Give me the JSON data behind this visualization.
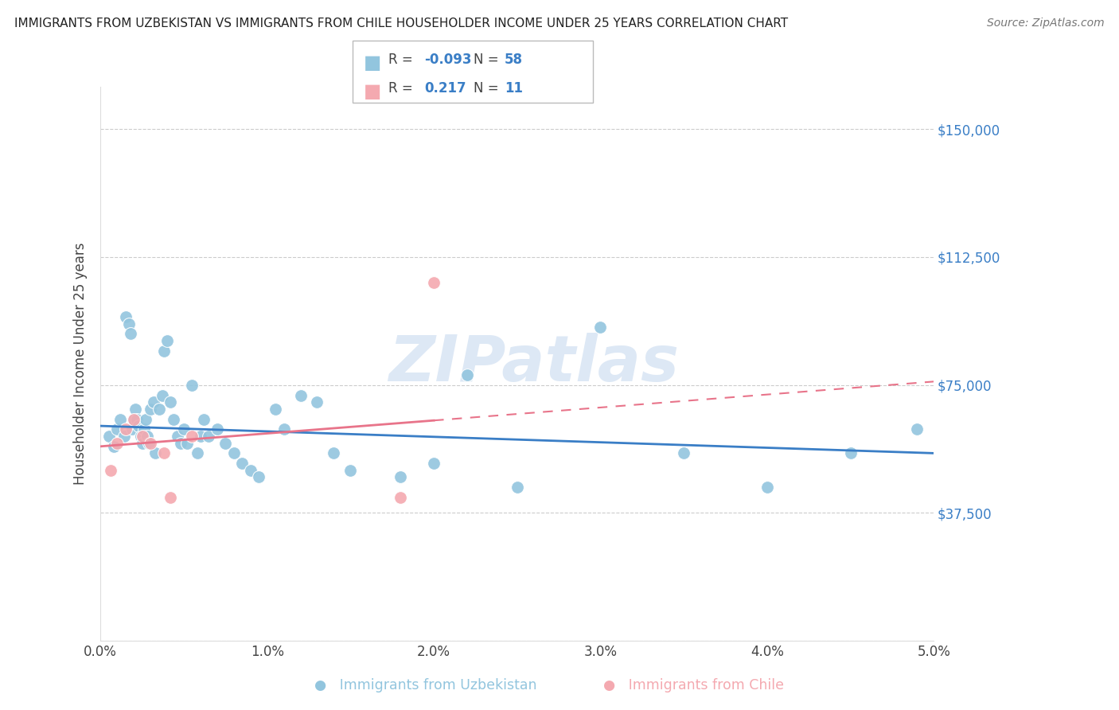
{
  "title": "IMMIGRANTS FROM UZBEKISTAN VS IMMIGRANTS FROM CHILE HOUSEHOLDER INCOME UNDER 25 YEARS CORRELATION CHART",
  "source": "Source: ZipAtlas.com",
  "ylabel": "Householder Income Under 25 years",
  "xlim": [
    0.0,
    5.0
  ],
  "ylim": [
    0,
    162500
  ],
  "yticks": [
    0,
    37500,
    75000,
    112500,
    150000
  ],
  "ytick_labels_right": [
    "",
    "$37,500",
    "$75,000",
    "$112,500",
    "$150,000"
  ],
  "xtick_values": [
    0,
    1,
    2,
    3,
    4,
    5
  ],
  "xtick_labels": [
    "0.0%",
    "1.0%",
    "2.0%",
    "3.0%",
    "4.0%",
    "5.0%"
  ],
  "blue_color": "#92c5de",
  "pink_color": "#f4a9b0",
  "blue_line_color": "#3a7ec6",
  "pink_line_color": "#e8748a",
  "watermark_text": "ZIPatlas",
  "watermark_color": "#dde8f5",
  "legend_blue_R": "-0.093",
  "legend_blue_N": "58",
  "legend_pink_R": "0.217",
  "legend_pink_N": "11",
  "blue_scatter_x": [
    0.05,
    0.08,
    0.1,
    0.12,
    0.14,
    0.15,
    0.17,
    0.18,
    0.19,
    0.2,
    0.21,
    0.22,
    0.23,
    0.24,
    0.25,
    0.26,
    0.27,
    0.28,
    0.29,
    0.3,
    0.32,
    0.33,
    0.35,
    0.37,
    0.38,
    0.4,
    0.42,
    0.44,
    0.46,
    0.48,
    0.5,
    0.52,
    0.55,
    0.58,
    0.6,
    0.62,
    0.65,
    0.7,
    0.75,
    0.8,
    0.85,
    0.9,
    0.95,
    1.05,
    1.1,
    1.2,
    1.3,
    1.4,
    1.5,
    1.8,
    2.0,
    2.2,
    2.5,
    3.0,
    3.5,
    4.0,
    4.5,
    4.9
  ],
  "blue_scatter_y": [
    60000,
    57000,
    62000,
    65000,
    60000,
    95000,
    93000,
    90000,
    62000,
    65000,
    68000,
    65000,
    63000,
    60000,
    58000,
    62000,
    65000,
    60000,
    58000,
    68000,
    70000,
    55000,
    68000,
    72000,
    85000,
    88000,
    70000,
    65000,
    60000,
    58000,
    62000,
    58000,
    75000,
    55000,
    60000,
    65000,
    60000,
    62000,
    58000,
    55000,
    52000,
    50000,
    48000,
    68000,
    62000,
    72000,
    70000,
    55000,
    50000,
    48000,
    52000,
    78000,
    45000,
    92000,
    55000,
    45000,
    55000,
    62000
  ],
  "pink_scatter_x": [
    0.06,
    0.1,
    0.15,
    0.2,
    0.25,
    0.3,
    0.38,
    0.42,
    0.55,
    1.8,
    2.0
  ],
  "pink_scatter_y": [
    50000,
    58000,
    62000,
    65000,
    60000,
    58000,
    55000,
    42000,
    60000,
    42000,
    105000
  ],
  "pink_solid_max_x": 2.0
}
